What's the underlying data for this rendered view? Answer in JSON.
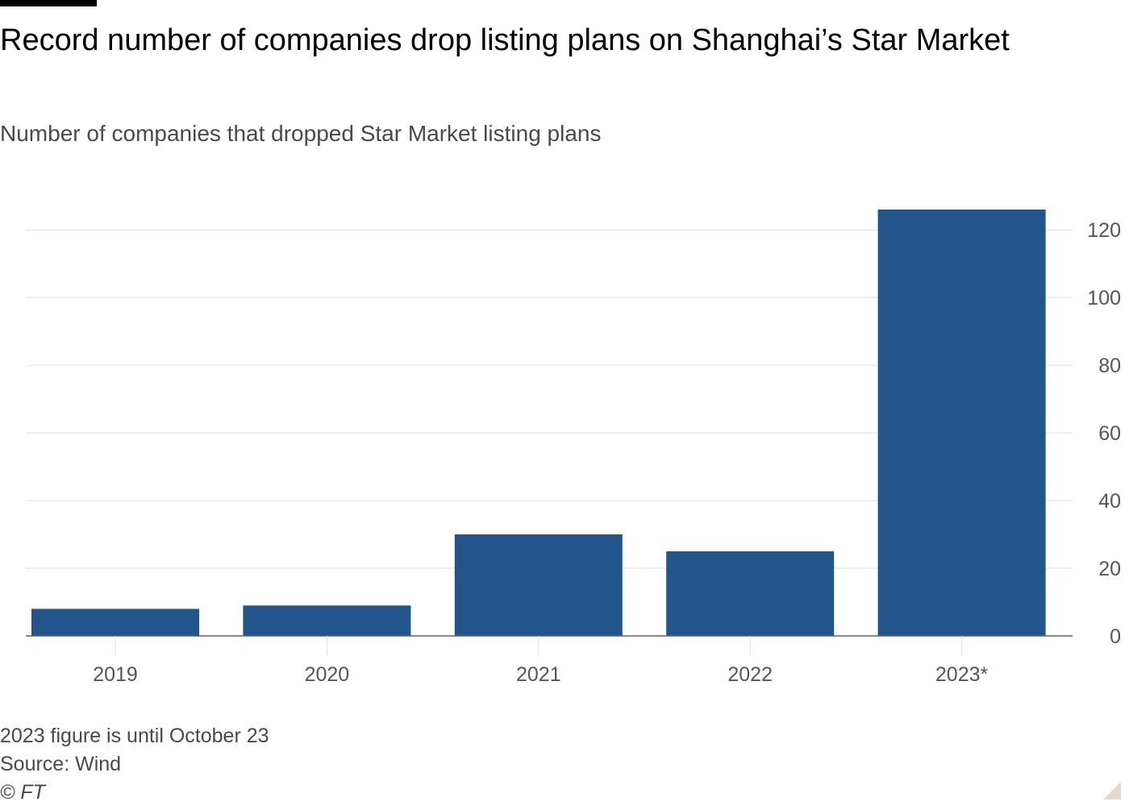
{
  "title": "Record number of companies drop listing plans on Shanghai’s Star Market",
  "subtitle": "Number of companies that dropped Star Market listing plans",
  "footer": {
    "note": "2023 figure is until October 23",
    "source": "Source: Wind",
    "copyright": "© FT"
  },
  "colors": {
    "bar": "#21558b",
    "grid": "#e9ddd3",
    "axis": "#66605c",
    "text": "#5a5552"
  },
  "chart_data": {
    "type": "bar",
    "title": "Record number of companies drop listing plans on Shanghai’s Star Market",
    "subtitle": "Number of companies that dropped Star Market listing plans",
    "xlabel": "",
    "ylabel": "",
    "categories": [
      "2019",
      "2020",
      "2021",
      "2022",
      "2023*"
    ],
    "values": [
      8,
      9,
      30,
      25,
      126
    ],
    "ylim": [
      0,
      126
    ],
    "yticks": [
      0,
      20,
      40,
      60,
      80,
      100,
      120
    ],
    "ytick_labels": [
      "0",
      "20",
      "40",
      "60",
      "80",
      "100",
      "120"
    ],
    "y_axis_position": "right",
    "grid": true,
    "legend": "none"
  }
}
